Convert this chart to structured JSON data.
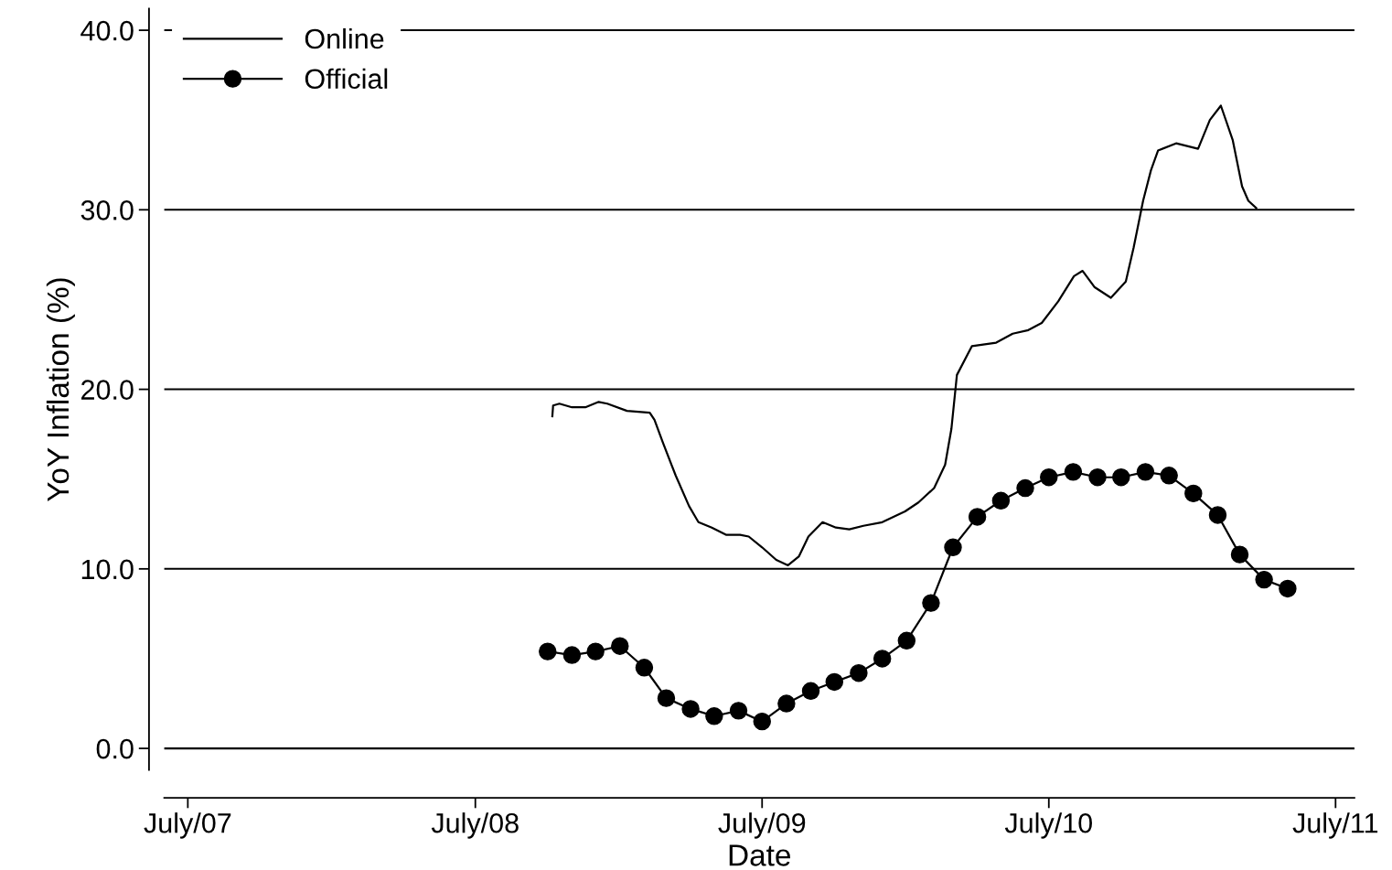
{
  "chart_data": {
    "type": "line",
    "xlabel": "Date",
    "ylabel": "YoY Inflation (%)",
    "xlim": [
      "2007-06-01",
      "2011-07-25"
    ],
    "ylim": [
      -1.2,
      41.2
    ],
    "xticks": [
      {
        "value": "2007-07-01",
        "label": "July/07"
      },
      {
        "value": "2008-07-01",
        "label": "July/08"
      },
      {
        "value": "2009-07-01",
        "label": "July/09"
      },
      {
        "value": "2010-07-01",
        "label": "July/10"
      },
      {
        "value": "2011-07-01",
        "label": "July/11"
      }
    ],
    "yticks": [
      {
        "value": 0,
        "label": "0.0"
      },
      {
        "value": 10,
        "label": "10.0"
      },
      {
        "value": 20,
        "label": "20.0"
      },
      {
        "value": 30,
        "label": "30.0"
      },
      {
        "value": 40,
        "label": "40.0"
      }
    ],
    "grid": "y",
    "legend": "top left",
    "series": [
      {
        "name": "Online",
        "color": "#000000",
        "marker": "none",
        "x": [
          "2008-10-07",
          "2008-10-08",
          "2008-10-16",
          "2008-11-01",
          "2008-11-18",
          "2008-12-05",
          "2008-12-16",
          "2009-01-10",
          "2009-02-08",
          "2009-02-14",
          "2009-02-25",
          "2009-03-13",
          "2009-03-30",
          "2009-04-11",
          "2009-04-28",
          "2009-05-16",
          "2009-06-03",
          "2009-06-14",
          "2009-07-01",
          "2009-07-19",
          "2009-08-03",
          "2009-08-17",
          "2009-08-29",
          "2009-09-16",
          "2009-10-03",
          "2009-10-20",
          "2009-11-07",
          "2009-12-01",
          "2009-12-30",
          "2010-01-16",
          "2010-02-05",
          "2010-02-19",
          "2010-02-27",
          "2010-03-06",
          "2010-03-25",
          "2010-04-25",
          "2010-05-16",
          "2010-06-05",
          "2010-06-22",
          "2010-07-13",
          "2010-08-02",
          "2010-08-13",
          "2010-08-28",
          "2010-09-18",
          "2010-10-07",
          "2010-10-17",
          "2010-10-29",
          "2010-11-08",
          "2010-11-17",
          "2010-12-10",
          "2011-01-07",
          "2011-01-22",
          "2011-02-05",
          "2011-02-20",
          "2011-03-04",
          "2011-03-12",
          "2011-03-22"
        ],
        "values": [
          18.5,
          19.1,
          19.2,
          19.0,
          19.0,
          19.3,
          19.2,
          18.8,
          18.7,
          18.3,
          17.0,
          15.2,
          13.5,
          12.6,
          12.3,
          11.9,
          11.9,
          11.8,
          11.2,
          10.5,
          10.2,
          10.7,
          11.8,
          12.6,
          12.3,
          12.2,
          12.4,
          12.6,
          13.2,
          13.7,
          14.5,
          15.8,
          17.8,
          20.8,
          22.4,
          22.6,
          23.1,
          23.3,
          23.7,
          24.9,
          26.3,
          26.6,
          25.7,
          25.1,
          26.0,
          27.9,
          30.5,
          32.2,
          33.3,
          33.7,
          33.4,
          35.0,
          35.8,
          33.9,
          31.3,
          30.5,
          30.1
        ]
      },
      {
        "name": "Official",
        "color": "#000000",
        "marker": "circle",
        "x": [
          "2008-10-01",
          "2008-11-01",
          "2008-12-01",
          "2009-01-01",
          "2009-02-01",
          "2009-03-01",
          "2009-04-01",
          "2009-05-01",
          "2009-06-01",
          "2009-07-01",
          "2009-08-01",
          "2009-09-01",
          "2009-10-01",
          "2009-11-01",
          "2009-12-01",
          "2010-01-01",
          "2010-02-01",
          "2010-03-01",
          "2010-04-01",
          "2010-05-01",
          "2010-06-01",
          "2010-07-01",
          "2010-08-01",
          "2010-09-01",
          "2010-10-01",
          "2010-11-01",
          "2010-12-01",
          "2011-01-01",
          "2011-02-01",
          "2011-03-01",
          "2011-04-01",
          "2011-05-01"
        ],
        "values": [
          5.4,
          5.2,
          5.4,
          5.7,
          4.5,
          2.8,
          2.2,
          1.8,
          2.1,
          1.5,
          2.5,
          3.2,
          3.7,
          4.2,
          5.0,
          6.0,
          8.1,
          11.2,
          12.9,
          13.8,
          14.5,
          15.1,
          15.4,
          15.1,
          15.1,
          15.4,
          15.2,
          14.2,
          13.0,
          10.8,
          9.4,
          8.9
        ]
      }
    ]
  }
}
